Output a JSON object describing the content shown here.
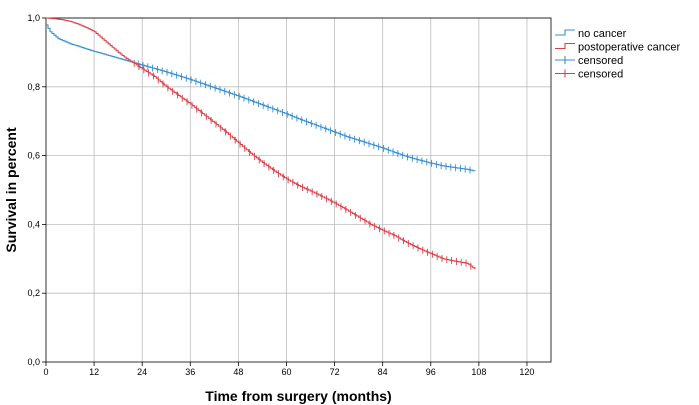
{
  "chart_data": {
    "type": "line",
    "subtype": "kaplan-meier-step",
    "xlabel": "Time from surgery (months)",
    "ylabel": "Survival in percent",
    "xlim": [
      0,
      126
    ],
    "ylim": [
      0,
      1.0
    ],
    "x_ticks": [
      0,
      12,
      24,
      36,
      48,
      60,
      72,
      84,
      96,
      108,
      120
    ],
    "y_ticks": [
      0.0,
      0.2,
      0.4,
      0.6,
      0.8,
      1.0
    ],
    "y_tick_labels": [
      "0,0",
      "0,2",
      "0,4",
      "0,6",
      "0,8",
      "1,0"
    ],
    "grid": true,
    "legend_position": "top-right",
    "legend": [
      {
        "label": "no cancer",
        "kind": "line",
        "color": "#3a8fd0"
      },
      {
        "label": "postoperative cancer",
        "kind": "line",
        "color": "#d9444a"
      },
      {
        "label": "censored",
        "kind": "censor",
        "color": "#3a8fd0"
      },
      {
        "label": "censored",
        "kind": "censor",
        "color": "#d9444a"
      }
    ],
    "series": [
      {
        "name": "no cancer",
        "color": "#3a8fd0",
        "x": [
          0,
          1,
          2,
          3,
          4,
          6,
          8,
          10,
          12,
          15,
          18,
          21,
          24,
          27,
          30,
          33,
          36,
          39,
          42,
          45,
          48,
          51,
          54,
          57,
          60,
          63,
          66,
          69,
          72,
          75,
          78,
          81,
          84,
          87,
          90,
          93,
          96,
          99,
          102,
          105,
          107
        ],
        "y": [
          0.98,
          0.96,
          0.95,
          0.94,
          0.935,
          0.925,
          0.918,
          0.91,
          0.903,
          0.893,
          0.883,
          0.873,
          0.863,
          0.853,
          0.843,
          0.832,
          0.821,
          0.809,
          0.797,
          0.785,
          0.773,
          0.76,
          0.747,
          0.734,
          0.721,
          0.707,
          0.694,
          0.681,
          0.668,
          0.655,
          0.644,
          0.633,
          0.622,
          0.609,
          0.597,
          0.587,
          0.578,
          0.57,
          0.565,
          0.56,
          0.555
        ],
        "censored_x_start": 23,
        "censored_x_end": 107
      },
      {
        "name": "postoperative cancer",
        "color": "#d9444a",
        "x": [
          0,
          2,
          4,
          6,
          8,
          10,
          12,
          14,
          16,
          18,
          20,
          22,
          24,
          27,
          30,
          33,
          36,
          39,
          42,
          45,
          48,
          51,
          54,
          57,
          60,
          63,
          66,
          69,
          72,
          75,
          78,
          81,
          84,
          87,
          90,
          93,
          96,
          99,
          102,
          105,
          107
        ],
        "y": [
          1.0,
          0.998,
          0.995,
          0.99,
          0.982,
          0.972,
          0.96,
          0.94,
          0.92,
          0.9,
          0.882,
          0.868,
          0.852,
          0.83,
          0.8,
          0.775,
          0.75,
          0.722,
          0.695,
          0.667,
          0.637,
          0.607,
          0.58,
          0.555,
          0.532,
          0.513,
          0.497,
          0.48,
          0.462,
          0.442,
          0.421,
          0.4,
          0.383,
          0.367,
          0.347,
          0.33,
          0.315,
          0.3,
          0.293,
          0.287,
          0.27
        ],
        "censored_x_start": 22,
        "censored_x_end": 107
      }
    ]
  }
}
